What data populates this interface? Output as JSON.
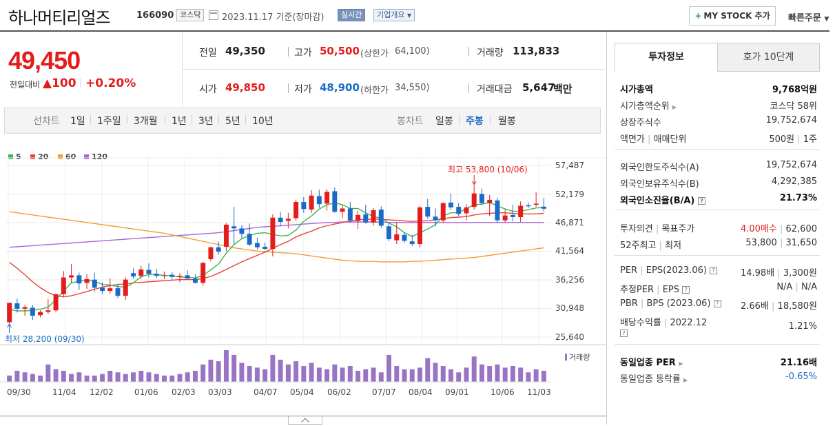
{
  "header": {
    "name": "하나머티리얼즈",
    "code": "166090",
    "market": "코스닥",
    "date": "2023.11.17 기준(장마감)",
    "realtime": "실시간",
    "company": "기업개요",
    "mystock": "MY STOCK 추가",
    "quick_order": "빠른주문"
  },
  "price": {
    "current": "49,450",
    "change_label": "전일대비",
    "change": "▲100",
    "change_pct": "+0.20%"
  },
  "quote": {
    "prev_label": "전일",
    "prev": "49,350",
    "high_label": "고가",
    "high": "50,500",
    "upper_label": "(상한가",
    "upper": "64,100)",
    "vol_label": "거래량",
    "vol": "113,833",
    "open_label": "시가",
    "open": "49,850",
    "low_label": "저가",
    "low": "48,900",
    "lower_label": "(하한가",
    "lower": "34,550)",
    "amt_label": "거래대금",
    "amt": "5,647",
    "amt_unit": "백만"
  },
  "periods": {
    "line_label": "선차트",
    "line": [
      "1일",
      "1주일",
      "3개월",
      "1년",
      "3년",
      "5년",
      "10년"
    ],
    "candle_label": "봉차트",
    "candle": [
      "일봉",
      "주봉",
      "월봉"
    ],
    "candle_active": "주봉"
  },
  "chart_data": {
    "type": "candlestick",
    "legend": [
      "5",
      "20",
      "60",
      "120"
    ],
    "ma_colors": {
      "5": "#3cb44b",
      "20": "#e8413c",
      "60": "#f39c34",
      "120": "#a566d6"
    },
    "up_color": "#e41c1c",
    "down_color": "#1b6ac9",
    "y_ticks": [
      "57,487",
      "52,179",
      "46,871",
      "41,564",
      "36,256",
      "30,948",
      "25,640"
    ],
    "ylim": [
      25640,
      57487
    ],
    "x_labels": [
      "09/30",
      "11/04",
      "12/02",
      "01/06",
      "02/03",
      "03/03",
      "04/07",
      "05/04",
      "06/02",
      "07/07",
      "08/04",
      "09/01",
      "10/06",
      "11/03"
    ],
    "high_annotation": "최고 53,800 (10/06)",
    "low_annotation": "최저 28,200 (09/30)",
    "volume_label": "거래량",
    "candles": [
      {
        "o": 28400,
        "h": 32000,
        "l": 28200,
        "c": 32000
      },
      {
        "o": 31900,
        "h": 32800,
        "l": 30200,
        "c": 30900
      },
      {
        "o": 30900,
        "h": 31600,
        "l": 29600,
        "c": 31200
      },
      {
        "o": 31100,
        "h": 31600,
        "l": 28800,
        "c": 29600
      },
      {
        "o": 29700,
        "h": 30600,
        "l": 29300,
        "c": 30300
      },
      {
        "o": 30300,
        "h": 32700,
        "l": 29900,
        "c": 30600
      },
      {
        "o": 30600,
        "h": 33700,
        "l": 30300,
        "c": 33600
      },
      {
        "o": 33600,
        "h": 37900,
        "l": 33000,
        "c": 36700
      },
      {
        "o": 36700,
        "h": 39200,
        "l": 35700,
        "c": 37100
      },
      {
        "o": 37100,
        "h": 37600,
        "l": 34400,
        "c": 35600
      },
      {
        "o": 35700,
        "h": 37300,
        "l": 34600,
        "c": 36400
      },
      {
        "o": 36300,
        "h": 37600,
        "l": 34100,
        "c": 34800
      },
      {
        "o": 34800,
        "h": 35800,
        "l": 33600,
        "c": 34200
      },
      {
        "o": 34200,
        "h": 36500,
        "l": 33700,
        "c": 34700
      },
      {
        "o": 34700,
        "h": 35500,
        "l": 32900,
        "c": 33300
      },
      {
        "o": 33300,
        "h": 36700,
        "l": 32500,
        "c": 36300
      },
      {
        "o": 37500,
        "h": 38400,
        "l": 36500,
        "c": 36900
      },
      {
        "o": 37000,
        "h": 38900,
        "l": 36500,
        "c": 38200
      },
      {
        "o": 38100,
        "h": 39300,
        "l": 36700,
        "c": 37400
      },
      {
        "o": 37400,
        "h": 38300,
        "l": 36600,
        "c": 37000
      },
      {
        "o": 37000,
        "h": 37800,
        "l": 36400,
        "c": 37100
      },
      {
        "o": 37200,
        "h": 37700,
        "l": 36200,
        "c": 36800
      },
      {
        "o": 36800,
        "h": 37500,
        "l": 35800,
        "c": 37000
      },
      {
        "o": 37100,
        "h": 38000,
        "l": 36400,
        "c": 36500
      },
      {
        "o": 36500,
        "h": 37300,
        "l": 35600,
        "c": 35700
      },
      {
        "o": 35700,
        "h": 39600,
        "l": 35200,
        "c": 39400
      },
      {
        "o": 40100,
        "h": 42400,
        "l": 39700,
        "c": 42300
      },
      {
        "o": 42300,
        "h": 43400,
        "l": 40900,
        "c": 41500
      },
      {
        "o": 42400,
        "h": 46800,
        "l": 41600,
        "c": 46500
      },
      {
        "o": 46200,
        "h": 49800,
        "l": 42800,
        "c": 45800
      },
      {
        "o": 45800,
        "h": 46400,
        "l": 43900,
        "c": 44800
      },
      {
        "o": 44800,
        "h": 46700,
        "l": 42500,
        "c": 42800
      },
      {
        "o": 43100,
        "h": 44100,
        "l": 41900,
        "c": 42300
      },
      {
        "o": 42400,
        "h": 43200,
        "l": 41800,
        "c": 42000
      },
      {
        "o": 42000,
        "h": 48400,
        "l": 40600,
        "c": 47800
      },
      {
        "o": 47800,
        "h": 48800,
        "l": 46200,
        "c": 47000
      },
      {
        "o": 47200,
        "h": 48700,
        "l": 45800,
        "c": 47600
      },
      {
        "o": 47700,
        "h": 51100,
        "l": 47200,
        "c": 50700
      },
      {
        "o": 50700,
        "h": 51600,
        "l": 48700,
        "c": 49400
      },
      {
        "o": 49300,
        "h": 52900,
        "l": 48700,
        "c": 51900
      },
      {
        "o": 51800,
        "h": 53000,
        "l": 49600,
        "c": 50300
      },
      {
        "o": 50400,
        "h": 53100,
        "l": 49100,
        "c": 52600
      },
      {
        "o": 52700,
        "h": 53400,
        "l": 48700,
        "c": 48900
      },
      {
        "o": 48900,
        "h": 50100,
        "l": 47700,
        "c": 49500
      },
      {
        "o": 49500,
        "h": 50700,
        "l": 46800,
        "c": 47300
      },
      {
        "o": 47200,
        "h": 49100,
        "l": 45700,
        "c": 48300
      },
      {
        "o": 48400,
        "h": 50200,
        "l": 46700,
        "c": 46900
      },
      {
        "o": 46900,
        "h": 49600,
        "l": 46300,
        "c": 49200
      },
      {
        "o": 49300,
        "h": 49900,
        "l": 45900,
        "c": 46300
      },
      {
        "o": 46200,
        "h": 47000,
        "l": 43400,
        "c": 43800
      },
      {
        "o": 43600,
        "h": 46900,
        "l": 42900,
        "c": 44700
      },
      {
        "o": 44600,
        "h": 45100,
        "l": 43100,
        "c": 43500
      },
      {
        "o": 43400,
        "h": 44600,
        "l": 42500,
        "c": 42900
      },
      {
        "o": 42900,
        "h": 50000,
        "l": 42300,
        "c": 49700
      },
      {
        "o": 49800,
        "h": 51300,
        "l": 47600,
        "c": 48000
      },
      {
        "o": 48000,
        "h": 49500,
        "l": 46200,
        "c": 47300
      },
      {
        "o": 47300,
        "h": 50600,
        "l": 46900,
        "c": 50500
      },
      {
        "o": 50600,
        "h": 52300,
        "l": 49200,
        "c": 49700
      },
      {
        "o": 49800,
        "h": 50500,
        "l": 48100,
        "c": 48500
      },
      {
        "o": 48600,
        "h": 50300,
        "l": 47300,
        "c": 49700
      },
      {
        "o": 49800,
        "h": 53800,
        "l": 49300,
        "c": 52300
      },
      {
        "o": 52200,
        "h": 53200,
        "l": 50100,
        "c": 50500
      },
      {
        "o": 50500,
        "h": 52000,
        "l": 48100,
        "c": 51100
      },
      {
        "o": 51000,
        "h": 51500,
        "l": 46800,
        "c": 47300
      },
      {
        "o": 47300,
        "h": 49300,
        "l": 46900,
        "c": 48200
      },
      {
        "o": 48300,
        "h": 50200,
        "l": 47100,
        "c": 47900
      },
      {
        "o": 47900,
        "h": 50800,
        "l": 47000,
        "c": 50000
      },
      {
        "o": 50100,
        "h": 50600,
        "l": 49600,
        "c": 49900
      },
      {
        "o": 50200,
        "h": 52500,
        "l": 49800,
        "c": 50400
      },
      {
        "o": 49850,
        "h": 51500,
        "l": 48900,
        "c": 49450
      }
    ],
    "volumes": [
      0.2,
      0.35,
      0.3,
      0.25,
      0.2,
      0.55,
      0.4,
      0.35,
      0.25,
      0.3,
      0.2,
      0.2,
      0.25,
      0.35,
      0.3,
      0.25,
      0.3,
      0.35,
      0.3,
      0.25,
      0.2,
      0.2,
      0.25,
      0.3,
      0.35,
      0.55,
      0.7,
      0.65,
      1.0,
      0.85,
      0.6,
      0.5,
      0.45,
      0.4,
      0.85,
      0.7,
      0.55,
      0.65,
      0.5,
      0.6,
      0.45,
      0.4,
      0.55,
      0.45,
      0.5,
      0.35,
      0.4,
      0.45,
      0.3,
      0.85,
      0.5,
      0.4,
      0.4,
      0.45,
      0.75,
      0.6,
      0.5,
      0.4,
      0.3,
      0.45,
      0.8,
      0.55,
      0.5,
      0.55,
      0.45,
      0.5,
      0.45,
      0.3,
      0.4,
      0.35
    ],
    "ma5": [
      30800,
      30500,
      30500,
      30600,
      30800,
      31200,
      32600,
      34200,
      35700,
      36000,
      36200,
      36000,
      35400,
      35300,
      35000,
      34900,
      35700,
      36800,
      37300,
      37200,
      37100,
      37000,
      36800,
      36700,
      36600,
      37100,
      38100,
      39200,
      41200,
      42800,
      43900,
      44500,
      44900,
      45000,
      44700,
      44400,
      44500,
      45500,
      47100,
      48100,
      49400,
      50200,
      50500,
      50200,
      49500,
      49500,
      48700,
      48000,
      47700,
      46800,
      46100,
      45000,
      44300,
      45000,
      45700,
      46500,
      48100,
      48700,
      48700,
      49500,
      50200,
      50300,
      50600,
      50000,
      49400,
      49000,
      49000,
      49300,
      49600,
      49700
    ],
    "ma20": [
      39500,
      38400,
      37200,
      35900,
      34800,
      33900,
      33300,
      33100,
      33300,
      33700,
      34100,
      34500,
      34900,
      35200,
      35400,
      35500,
      35700,
      35800,
      35900,
      36000,
      36100,
      36200,
      36300,
      36300,
      36300,
      36500,
      36900,
      37500,
      38200,
      38900,
      39600,
      40200,
      40800,
      41400,
      42100,
      42800,
      43400,
      44200,
      44800,
      45300,
      45900,
      46300,
      46600,
      46900,
      47200,
      47400,
      47500,
      47500,
      47500,
      47400,
      47300,
      47200,
      47100,
      47200,
      47200,
      47400,
      47600,
      47800,
      47900,
      48000,
      48300,
      48500,
      48600,
      48700,
      48700,
      48600,
      48500,
      48500,
      48500,
      48600
    ],
    "ma60": [
      48900,
      48700,
      48500,
      48300,
      48100,
      47900,
      47700,
      47500,
      47300,
      47100,
      46900,
      46700,
      46500,
      46300,
      46100,
      45900,
      45700,
      45500,
      45300,
      45100,
      44900,
      44600,
      44300,
      44000,
      43700,
      43400,
      43100,
      42800,
      42500,
      42200,
      42000,
      41800,
      41600,
      41500,
      41400,
      41300,
      41200,
      41100,
      40900,
      40700,
      40500,
      40300,
      40100,
      39900,
      39800,
      39700,
      39700,
      39700,
      39600,
      39600,
      39600,
      39600,
      39700,
      39700,
      39800,
      39900,
      40000,
      40100,
      40200,
      40300,
      40400,
      40600,
      40800,
      41000,
      41200,
      41400,
      41600,
      41800,
      42000,
      42200
    ],
    "ma120": [
      42300,
      42400,
      42500,
      42600,
      42700,
      42800,
      42900,
      43000,
      43100,
      43200,
      43300,
      43400,
      43500,
      43600,
      43700,
      43800,
      43900,
      44000,
      44100,
      44200,
      44300,
      44400,
      44500,
      44600,
      44700,
      44800,
      44900,
      45000,
      45200,
      45400,
      45600,
      45800,
      46000,
      46100,
      46200,
      46300,
      46400,
      46500,
      46600,
      46700,
      46800,
      46900,
      46900,
      47000,
      47000,
      47000,
      47000,
      47000,
      47000,
      46900,
      46900,
      46900,
      46900,
      46900,
      46900,
      46900,
      46900,
      46900,
      46900,
      46900,
      46900,
      46900,
      46900,
      46900,
      46900,
      46900,
      46900,
      46900,
      46900,
      46900
    ]
  },
  "tabs": {
    "invest": "투자정보",
    "hoga": "호가 10단계"
  },
  "info": {
    "mcap_k": "시가총액",
    "mcap_v": "9,768억원",
    "rank_k": "시가총액순위",
    "rank_v": "코스닥 58위",
    "shares_k": "상장주식수",
    "shares_v": "19,752,674",
    "face_k": "액면가",
    "face_k2": "매매단위",
    "face_v": "500원",
    "face_v2": "1주",
    "frlimit_k": "외국인한도주식수(A)",
    "frlimit_v": "19,752,674",
    "frhold_k": "외국인보유주식수(B)",
    "frhold_v": "4,292,385",
    "frratio_k": "외국인소진율(B/A)",
    "frratio_v": "21.73%",
    "opinion_k": "투자의견",
    "opinion_k2": "목표주가",
    "opinion_v": "4.00매수",
    "opinion_v2": "62,600",
    "w52_k": "52주최고",
    "w52_k2": "최저",
    "w52_v": "53,800",
    "w52_v2": "31,650",
    "per_k": "PER",
    "per_k2": "EPS(2023.06)",
    "per_v": "14.98배",
    "per_v2": "3,300원",
    "eper_k": "추정PER",
    "eper_k2": "EPS",
    "eper_v": "N/A",
    "eper_v2": "N/A",
    "pbr_k": "PBR",
    "pbr_k2": "BPS (2023.06)",
    "pbr_v": "2.66배",
    "pbr_v2": "18,580원",
    "div_k": "배당수익률",
    "div_k2": "2022.12",
    "div_v": "1.21%",
    "sector_per_k": "동일업종 PER",
    "sector_per_v": "21.16배",
    "sector_rate_k": "동일업종 등락률",
    "sector_rate_v": "-0.65%"
  }
}
